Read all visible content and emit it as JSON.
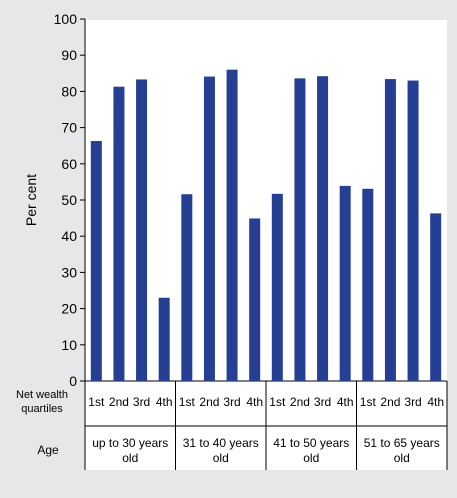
{
  "chart_data": {
    "type": "bar",
    "ylabel": "Per cent",
    "ylim": [
      0,
      100
    ],
    "yticks": [
      0,
      10,
      20,
      30,
      40,
      50,
      60,
      70,
      80,
      90,
      100
    ],
    "grid": false,
    "row_labels": {
      "quartiles": [
        "Net wealth",
        "quartiles"
      ],
      "age": "Age"
    },
    "quartile_labels": [
      "1st",
      "2nd",
      "3rd",
      "4th"
    ],
    "groups": [
      {
        "label": [
          "up to 30 years",
          "old"
        ],
        "values": [
          66.3,
          81.3,
          83.3,
          23.0
        ]
      },
      {
        "label": [
          "31 to 40 years",
          "old"
        ],
        "values": [
          51.6,
          84.1,
          86.0,
          44.9
        ]
      },
      {
        "label": [
          "41 to 50 years",
          "old"
        ],
        "values": [
          51.7,
          83.6,
          84.2,
          53.9
        ]
      },
      {
        "label": [
          "51 to 65 years",
          "old"
        ],
        "values": [
          53.1,
          83.4,
          83.0,
          46.3
        ]
      }
    ],
    "bar_color": "#243f94"
  }
}
